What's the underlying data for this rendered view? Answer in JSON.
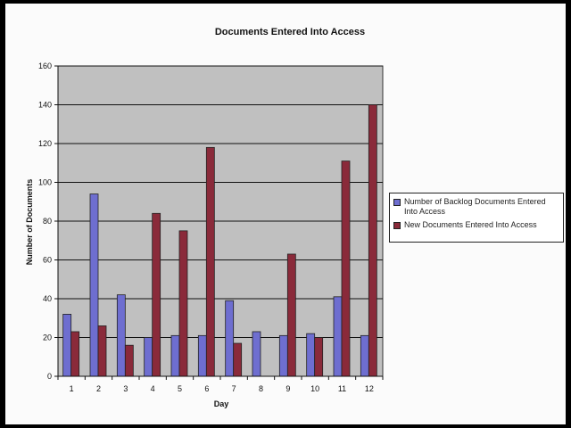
{
  "chart_data": {
    "type": "bar",
    "title": "Documents Entered Into Access",
    "xlabel": "Day",
    "ylabel": "Number of Documents",
    "categories": [
      "1",
      "2",
      "3",
      "4",
      "5",
      "6",
      "7",
      "8",
      "9",
      "10",
      "11",
      "12"
    ],
    "series": [
      {
        "name": "Number of Backlog Documents Entered Into Access",
        "color": "#6e6ed0",
        "values": [
          32,
          94,
          42,
          20,
          21,
          21,
          39,
          23,
          21,
          22,
          41,
          21
        ]
      },
      {
        "name": "New Documents Entered Into Access",
        "color": "#8a2a3a",
        "values": [
          23,
          26,
          16,
          84,
          75,
          118,
          17,
          0,
          63,
          20,
          111,
          140
        ]
      }
    ],
    "ylim": [
      0,
      160
    ],
    "yticks": [
      0,
      20,
      40,
      60,
      80,
      100,
      120,
      140,
      160
    ],
    "grid": true,
    "plot_background": "#c0c0c0",
    "legend_position": "right"
  }
}
